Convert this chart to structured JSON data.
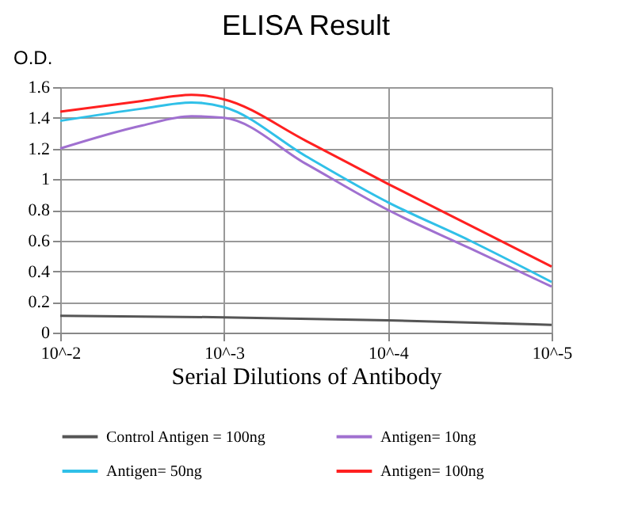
{
  "chart_data": {
    "type": "line",
    "title": "ELISA Result",
    "ylabel": "O.D.",
    "xlabel": "Serial Dilutions  of Antibody",
    "log": "x",
    "xlim": [
      0.01,
      1e-05
    ],
    "xticks": [
      {
        "value": 0.01,
        "label": "10^-2"
      },
      {
        "value": 0.001,
        "label": "10^-3"
      },
      {
        "value": 0.0001,
        "label": "10^-4"
      },
      {
        "value": 1e-05,
        "label": "10^-5"
      }
    ],
    "ylim": [
      0,
      1.6
    ],
    "yticks": [
      0,
      0.2,
      0.4,
      0.6,
      0.8,
      1,
      1.2,
      1.4,
      1.6
    ],
    "grid": true,
    "legend": "bottom",
    "marker": "none",
    "line_style": "solid",
    "series": [
      {
        "name": "Control Antigen = 100ng",
        "color": "#555555",
        "x": [
          0.01,
          0.001,
          0.0001,
          1e-05
        ],
        "values": [
          0.11,
          0.1,
          0.08,
          0.05
        ]
      },
      {
        "name": "Antigen= 10ng",
        "color": "#a070d0",
        "x": [
          0.01,
          0.00316,
          0.00158,
          0.001,
          0.000316,
          0.0001,
          3.16e-05,
          1e-05
        ],
        "values": [
          1.2,
          1.35,
          1.41,
          1.4,
          1.1,
          0.8,
          0.55,
          0.3
        ]
      },
      {
        "name": "Antigen= 50ng",
        "color": "#30c0e8",
        "x": [
          0.01,
          0.00316,
          0.00158,
          0.001,
          0.000316,
          0.0001,
          3.16e-05,
          1e-05
        ],
        "values": [
          1.38,
          1.46,
          1.5,
          1.47,
          1.15,
          0.85,
          0.6,
          0.33
        ]
      },
      {
        "name": "Antigen= 100ng",
        "color": "#ff2020",
        "x": [
          0.01,
          0.00316,
          0.00158,
          0.001,
          0.000316,
          0.0001,
          3.16e-05,
          1e-05
        ],
        "values": [
          1.44,
          1.51,
          1.55,
          1.52,
          1.25,
          0.97,
          0.7,
          0.43
        ]
      }
    ]
  }
}
